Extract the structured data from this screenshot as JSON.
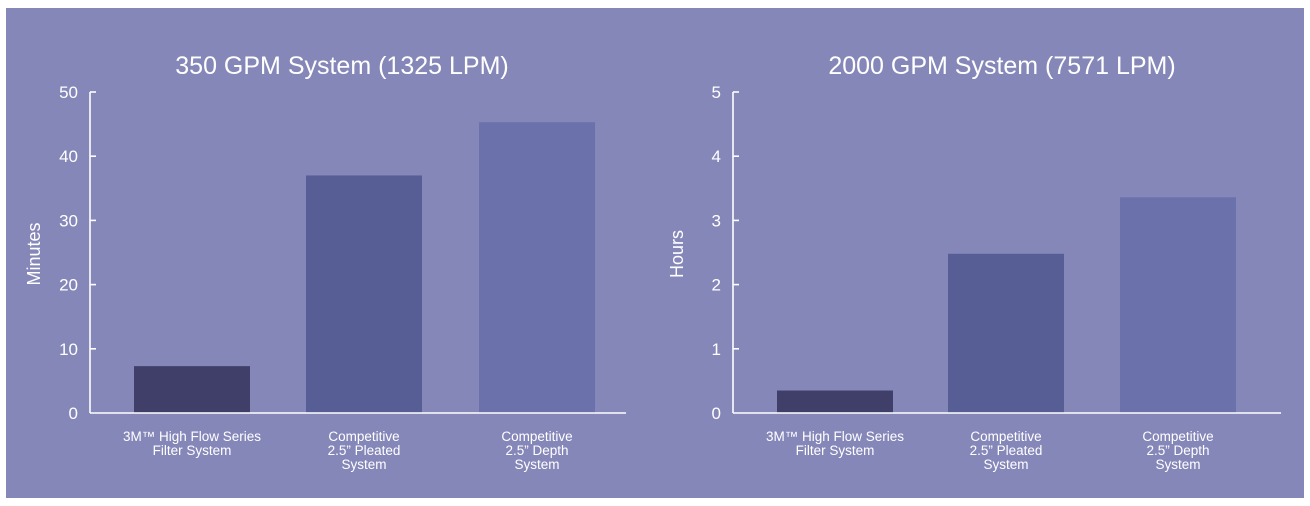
{
  "colors": {
    "background": "#8687b9",
    "axis": "#ffffff",
    "text": "#ffffff",
    "bar_1": "#403f69",
    "bar_2": "#565e95",
    "bar_3": "#6b72ab"
  },
  "chart_data": [
    {
      "type": "bar",
      "title": "350 GPM System (1325 LPM)",
      "ylabel": "Minutes",
      "xlabel": "",
      "ylim": [
        0,
        50
      ],
      "yticks": [
        "0",
        "10",
        "20",
        "30",
        "40",
        "50"
      ],
      "ytick_values": [
        0,
        10,
        20,
        30,
        40,
        50
      ],
      "categories": [
        [
          "3M™ High Flow Series",
          "Filter System"
        ],
        [
          "Competitive",
          "2.5” Pleated",
          "System"
        ],
        [
          "Competitive",
          "2.5” Depth",
          "System"
        ]
      ],
      "values": [
        7.3,
        37.0,
        45.3
      ],
      "grid": false,
      "legend": "none"
    },
    {
      "type": "bar",
      "title": "2000 GPM System (7571 LPM)",
      "ylabel": "Hours",
      "xlabel": "",
      "ylim": [
        0,
        5
      ],
      "yticks": [
        "0",
        "1",
        "2",
        "3",
        "4",
        "5"
      ],
      "ytick_values": [
        0,
        1,
        2,
        3,
        4,
        5
      ],
      "categories": [
        [
          "3M™ High Flow Series",
          "Filter System"
        ],
        [
          "Competitive",
          "2.5” Pleated",
          "System"
        ],
        [
          "Competitive",
          "2.5” Depth",
          "System"
        ]
      ],
      "values": [
        0.35,
        2.48,
        3.36
      ],
      "grid": false,
      "legend": "none"
    }
  ]
}
